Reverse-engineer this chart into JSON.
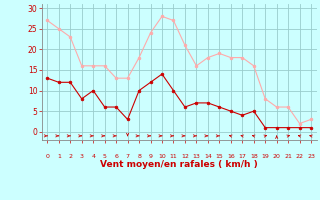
{
  "x": [
    0,
    1,
    2,
    3,
    4,
    5,
    6,
    7,
    8,
    9,
    10,
    11,
    12,
    13,
    14,
    15,
    16,
    17,
    18,
    19,
    20,
    21,
    22,
    23
  ],
  "wind_avg": [
    13,
    12,
    12,
    8,
    10,
    6,
    6,
    3,
    10,
    12,
    14,
    10,
    6,
    7,
    7,
    6,
    5,
    4,
    5,
    1,
    1,
    1,
    1,
    1
  ],
  "wind_gust": [
    27,
    25,
    23,
    16,
    16,
    16,
    13,
    13,
    18,
    24,
    28,
    27,
    21,
    16,
    18,
    19,
    18,
    18,
    16,
    8,
    6,
    6,
    2,
    3
  ],
  "wind_avg_color": "#cc0000",
  "wind_gust_color": "#ffaaaa",
  "background_color": "#ccffff",
  "grid_color": "#99cccc",
  "xlabel": "Vent moyen/en rafales ( km/h )",
  "xlabel_color": "#cc0000",
  "ylabel_ticks": [
    0,
    5,
    10,
    15,
    20,
    25,
    30
  ],
  "ylim": [
    -2,
    31
  ],
  "xlim": [
    -0.5,
    23.5
  ],
  "tick_color": "#cc0000",
  "arrow_color": "#cc0000",
  "spine_color": "#888888"
}
